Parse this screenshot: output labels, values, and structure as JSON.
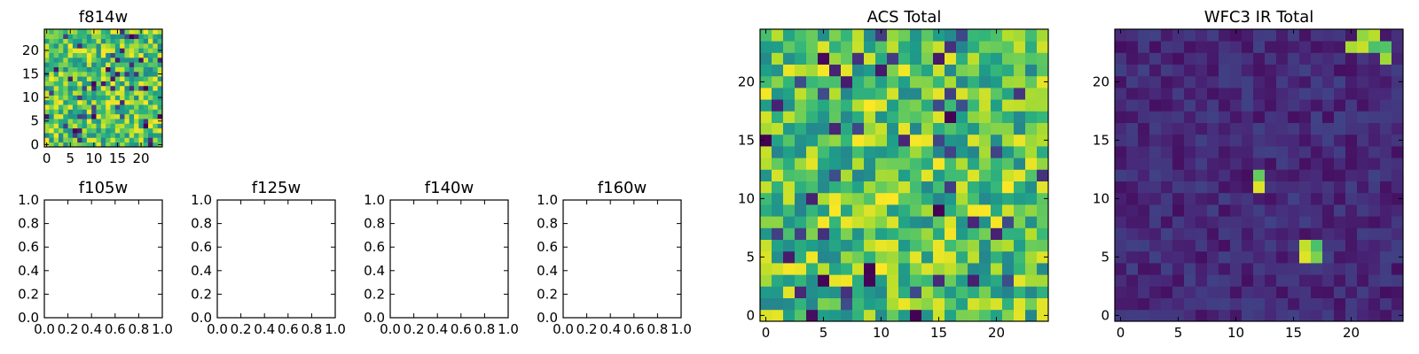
{
  "chart_data": [
    {
      "type": "heatmap",
      "title": "f814w",
      "xticks": [
        "0",
        "5",
        "10",
        "15",
        "20"
      ],
      "yticks": [
        "0",
        "5",
        "10",
        "15",
        "20"
      ],
      "xlim": [
        -0.5,
        24.5
      ],
      "ylim": [
        -0.5,
        24.5
      ],
      "colormap": "viridis",
      "grid": false,
      "z_summary": "25x25 pixel image, noisy background, mostly green-yellow with dark speckles"
    },
    {
      "type": "scatter",
      "title": "f105w",
      "xticks": [
        "0.0",
        "0.2",
        "0.4",
        "0.6",
        "0.8",
        "1.0"
      ],
      "yticks": [
        "0.0",
        "0.2",
        "0.4",
        "0.6",
        "0.8",
        "1.0"
      ],
      "xlim": [
        0,
        1
      ],
      "ylim": [
        0,
        1
      ],
      "series": []
    },
    {
      "type": "scatter",
      "title": "f125w",
      "xticks": [
        "0.0",
        "0.2",
        "0.4",
        "0.6",
        "0.8",
        "1.0"
      ],
      "yticks": [
        "0.0",
        "0.2",
        "0.4",
        "0.6",
        "0.8",
        "1.0"
      ],
      "xlim": [
        0,
        1
      ],
      "ylim": [
        0,
        1
      ],
      "series": []
    },
    {
      "type": "scatter",
      "title": "f140w",
      "xticks": [
        "0.0",
        "0.2",
        "0.4",
        "0.6",
        "0.8",
        "1.0"
      ],
      "yticks": [
        "0.0",
        "0.2",
        "0.4",
        "0.6",
        "0.8",
        "1.0"
      ],
      "xlim": [
        0,
        1
      ],
      "ylim": [
        0,
        1
      ],
      "series": []
    },
    {
      "type": "scatter",
      "title": "f160w",
      "xticks": [
        "0.0",
        "0.2",
        "0.4",
        "0.6",
        "0.8",
        "1.0"
      ],
      "yticks": [
        "0.0",
        "0.2",
        "0.4",
        "0.6",
        "0.8",
        "1.0"
      ],
      "xlim": [
        0,
        1
      ],
      "ylim": [
        0,
        1
      ],
      "series": []
    },
    {
      "type": "heatmap",
      "title": "ACS Total",
      "xticks": [
        "0",
        "5",
        "10",
        "15",
        "20"
      ],
      "yticks": [
        "0",
        "5",
        "10",
        "15",
        "20"
      ],
      "xlim": [
        -0.5,
        24.5
      ],
      "ylim": [
        -0.5,
        24.5
      ],
      "colormap": "viridis",
      "grid": false,
      "z_summary": "25x25 pixel image, noisy background, mostly green-yellow with scattered dark pixels"
    },
    {
      "type": "heatmap",
      "title": "WFC3 IR Total",
      "xticks": [
        "0",
        "5",
        "10",
        "15",
        "20"
      ],
      "yticks": [
        "0",
        "5",
        "10",
        "15",
        "20"
      ],
      "xlim": [
        -0.5,
        24.5
      ],
      "ylim": [
        -0.5,
        24.5
      ],
      "colormap": "viridis",
      "grid": false,
      "z_summary": "25x25 pixel image, dark purple background",
      "bright_pixels": [
        {
          "x": 20,
          "y": 23
        },
        {
          "x": 21,
          "y": 23
        },
        {
          "x": 22,
          "y": 23
        },
        {
          "x": 23,
          "y": 23
        },
        {
          "x": 21,
          "y": 24
        },
        {
          "x": 22,
          "y": 24
        },
        {
          "x": 23,
          "y": 22
        },
        {
          "x": 16,
          "y": 6
        },
        {
          "x": 17,
          "y": 6
        },
        {
          "x": 16,
          "y": 5
        },
        {
          "x": 17,
          "y": 5
        },
        {
          "x": 12,
          "y": 12
        },
        {
          "x": 12,
          "y": 11
        }
      ]
    }
  ]
}
